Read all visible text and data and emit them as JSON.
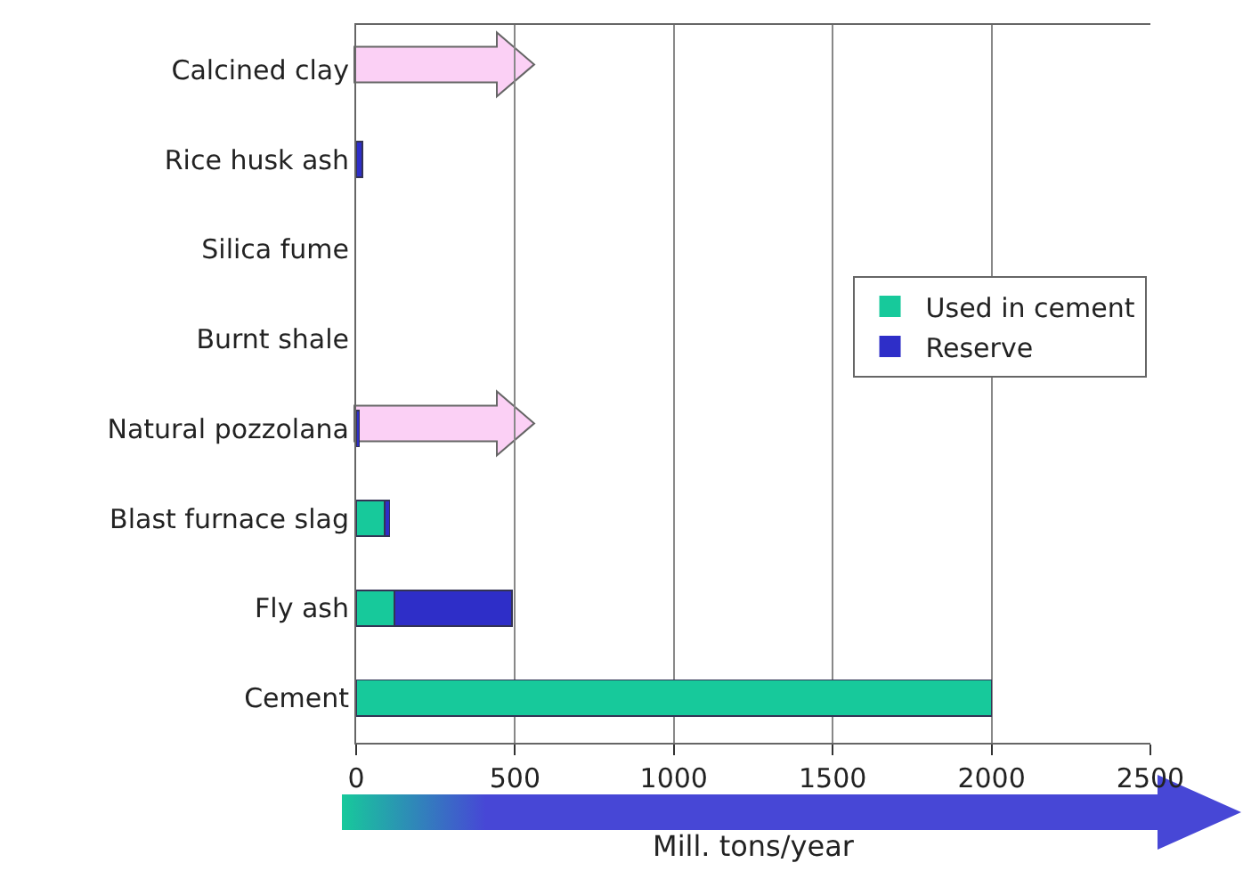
{
  "chart_data": {
    "type": "bar",
    "orientation": "horizontal",
    "stacked": true,
    "xlabel": "Mill. tons/year",
    "categories": [
      "Calcined clay",
      "Rice husk ash",
      "Silica fume",
      "Burnt shale",
      "Natural pozzolana",
      "Blast furnace slag",
      "Fly ash",
      "Cement"
    ],
    "series": [
      {
        "name": "Used in cement",
        "color": "#17c99b",
        "values": [
          0,
          0,
          0,
          0,
          0,
          90,
          120,
          2000
        ]
      },
      {
        "name": "Reserve",
        "color": "#2e2ec8",
        "values": [
          0,
          20,
          0,
          0,
          10,
          15,
          370,
          0
        ]
      }
    ],
    "xlim": [
      0,
      2500
    ],
    "xticks": [
      0,
      500,
      1000,
      1500,
      2000,
      2500
    ],
    "grid": "x",
    "legend": "right"
  }
}
